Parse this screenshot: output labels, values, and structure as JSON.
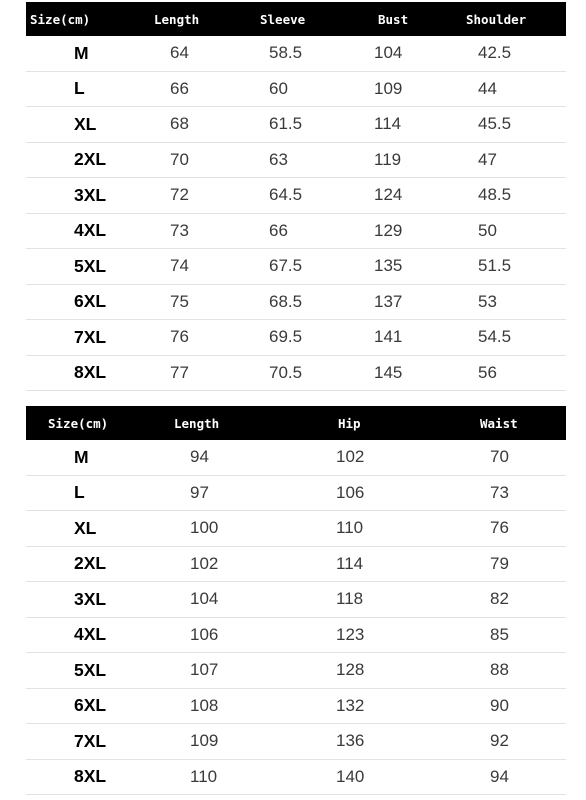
{
  "top_table": {
    "headers": [
      "Size(cm)",
      "Length",
      "Sleeve",
      "Bust",
      "Shoulder"
    ],
    "rows": [
      [
        "M",
        "64",
        "58.5",
        "104",
        "42.5"
      ],
      [
        "L",
        "66",
        "60",
        "109",
        "44"
      ],
      [
        "XL",
        "68",
        "61.5",
        "114",
        "45.5"
      ],
      [
        "2XL",
        "70",
        "63",
        "119",
        "47"
      ],
      [
        "3XL",
        "72",
        "64.5",
        "124",
        "48.5"
      ],
      [
        "4XL",
        "73",
        "66",
        "129",
        "50"
      ],
      [
        "5XL",
        "74",
        "67.5",
        "135",
        "51.5"
      ],
      [
        "6XL",
        "75",
        "68.5",
        "137",
        "53"
      ],
      [
        "7XL",
        "76",
        "69.5",
        "141",
        "54.5"
      ],
      [
        "8XL",
        "77",
        "70.5",
        "145",
        "56"
      ]
    ]
  },
  "bottom_table": {
    "headers": [
      "Size(cm)",
      "Length",
      "Hip",
      "Waist"
    ],
    "rows": [
      [
        "M",
        "94",
        "102",
        "70"
      ],
      [
        "L",
        "97",
        "106",
        "73"
      ],
      [
        "XL",
        "100",
        "110",
        "76"
      ],
      [
        "2XL",
        "102",
        "114",
        "79"
      ],
      [
        "3XL",
        "104",
        "118",
        "82"
      ],
      [
        "4XL",
        "106",
        "123",
        "85"
      ],
      [
        "5XL",
        "107",
        "128",
        "88"
      ],
      [
        "6XL",
        "108",
        "132",
        "90"
      ],
      [
        "7XL",
        "109",
        "136",
        "92"
      ],
      [
        "8XL",
        "110",
        "140",
        "94"
      ]
    ]
  }
}
